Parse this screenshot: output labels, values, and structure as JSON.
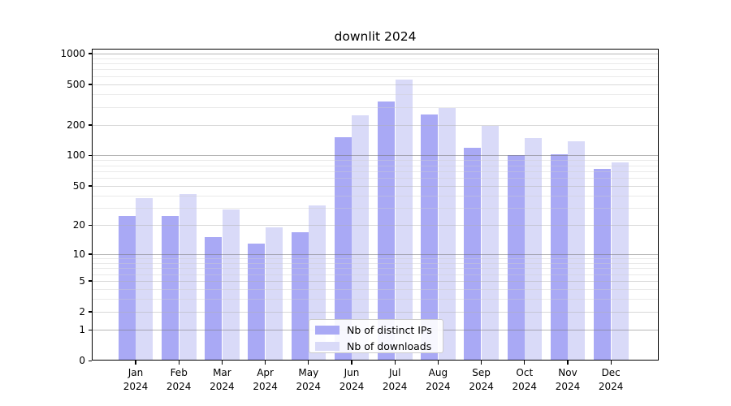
{
  "title": "downlit 2024",
  "legend": {
    "items": [
      {
        "label": "Nb of distinct IPs",
        "color": "#a9a9f5"
      },
      {
        "label": "Nb of downloads",
        "color": "#d9daf8"
      }
    ]
  },
  "chart_data": {
    "type": "bar",
    "title": "downlit 2024",
    "categories": [
      "Jan 2024",
      "Feb 2024",
      "Mar 2024",
      "Apr 2024",
      "May 2024",
      "Jun 2024",
      "Jul 2024",
      "Aug 2024",
      "Sep 2024",
      "Oct 2024",
      "Nov 2024",
      "Dec 2024"
    ],
    "series": [
      {
        "name": "Nb of distinct IPs",
        "color": "#a9a9f5",
        "values": [
          25,
          25,
          15,
          13,
          17,
          150,
          342,
          253,
          120,
          100,
          103,
          73
        ]
      },
      {
        "name": "Nb of downloads",
        "color": "#d9daf8",
        "values": [
          38,
          41,
          29,
          19,
          32,
          250,
          560,
          293,
          195,
          148,
          138,
          86
        ]
      }
    ],
    "xlabel": "",
    "ylabel": "",
    "y_scale": "log10(1+v)",
    "ylim": [
      0,
      1115
    ],
    "y_ticks": [
      0,
      1,
      2,
      5,
      10,
      20,
      50,
      100,
      200,
      500,
      1000
    ],
    "y_major_gridlines": [
      1,
      10,
      100,
      1000
    ],
    "y_mid_gridlines": [
      2,
      5,
      20,
      50,
      200,
      500
    ],
    "y_minor_gridlines": [
      3,
      4,
      6,
      7,
      8,
      9,
      30,
      40,
      60,
      70,
      80,
      90,
      300,
      400,
      600,
      700,
      800,
      900
    ],
    "grid": true,
    "legend_position": "lower center"
  }
}
